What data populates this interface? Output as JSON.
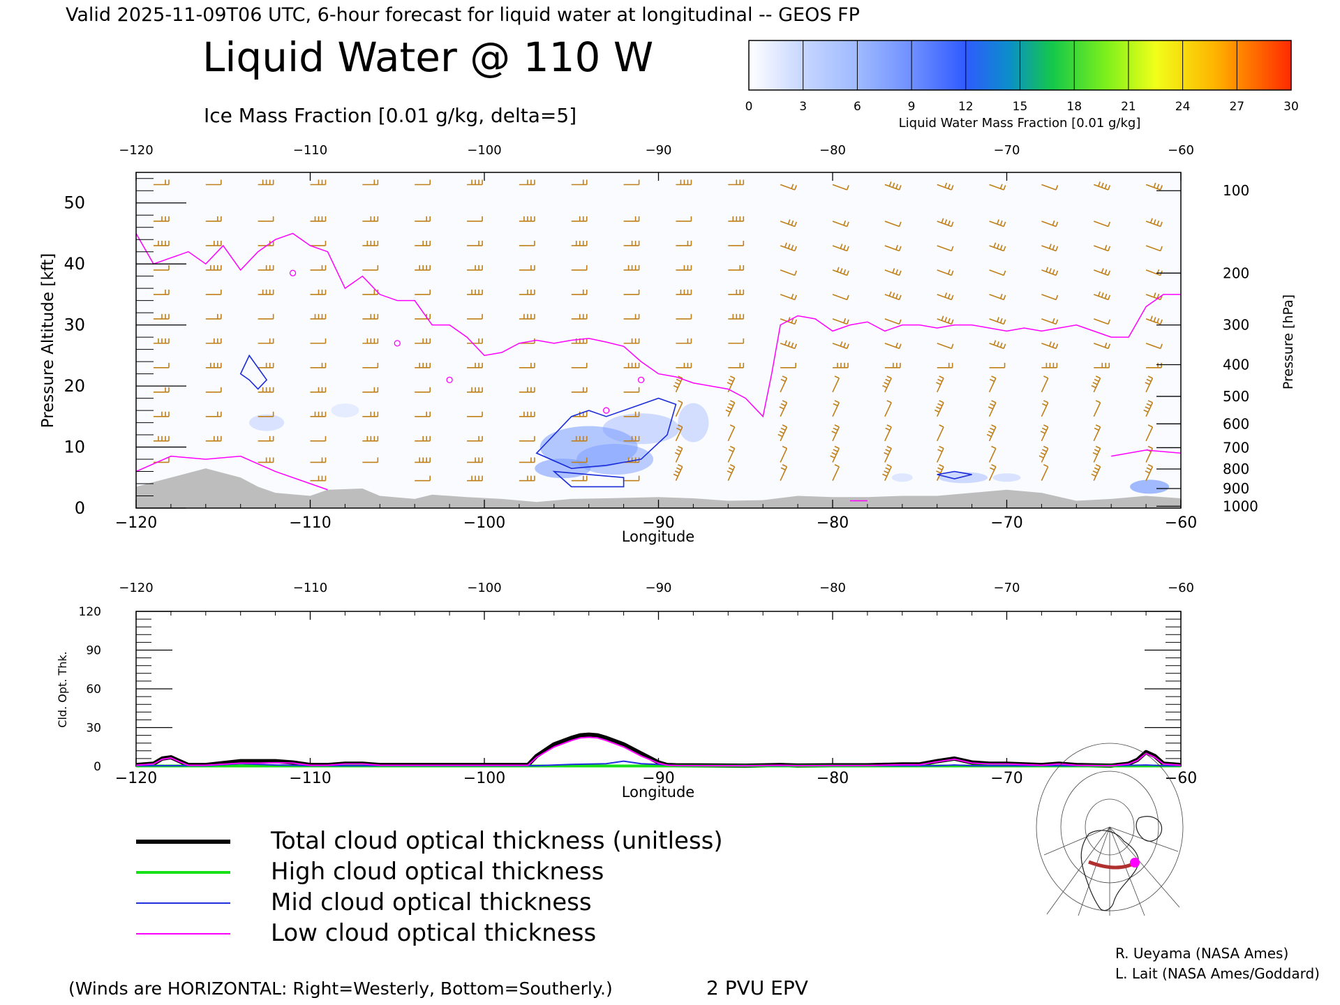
{
  "header": {
    "valid_line": "Valid 2025-11-09T06 UTC, 6-hour forecast for liquid water at longitudinal -- GEOS FP",
    "title": "Liquid Water @ 110 W",
    "ice_label": "Ice Mass Fraction [0.01 g/kg, delta=5]"
  },
  "colorbar": {
    "ticks": [
      "0",
      "3",
      "6",
      "9",
      "12",
      "15",
      "18",
      "21",
      "24",
      "27",
      "30"
    ],
    "label": "Liquid Water Mass Fraction [0.01 g/kg]",
    "colors": [
      "#ffffff",
      "#c6d6ff",
      "#9fbaff",
      "#7b9cff",
      "#3f68ff",
      "#0b8ec9",
      "#14c84a",
      "#7ef01b",
      "#f1ff1a",
      "#ffb300",
      "#ff2a00"
    ]
  },
  "colors": {
    "wind": "#c07f17",
    "epv": "#ff00ff",
    "ice": "#1b2cd8",
    "terrain": "#bdbdbd",
    "liquid_blue": "#7a9cff"
  },
  "top_panel": {
    "xlabel": "Longitude",
    "ylabel": "Pressure Altitude [kft]",
    "ylabel_right": "Pressure [hPa]"
  },
  "bottom_panel": {
    "xlabel": "Longitude",
    "ylabel": "Cld. Opt. Thk."
  },
  "legend": [
    {
      "name": "Total cloud optical thickness (unitless)",
      "color": "#000000",
      "width": 6
    },
    {
      "name": "High cloud optical thickness",
      "color": "#16e016",
      "width": 4
    },
    {
      "name": "Mid cloud optical thickness",
      "color": "#2030e0",
      "width": 2
    },
    {
      "name": "Low cloud optical thickness",
      "color": "#ff00ff",
      "width": 2
    }
  ],
  "footer": {
    "winds_note": "(Winds are HORIZONTAL: Right=Westerly, Bottom=Southerly.)",
    "epv_note": "2 PVU EPV",
    "credit1": "R. Ueyama (NASA Ames)",
    "credit2": "L. Lait (NASA Ames/Goddard)"
  },
  "chart_data": [
    {
      "type": "heatmap",
      "title": "Liquid Water @ 110 W",
      "xlabel": "Longitude",
      "ylabel": "Pressure Altitude [kft]",
      "ylabel_right": "Pressure [hPa]",
      "xlim": [
        -120,
        -60
      ],
      "ylim": [
        0,
        55
      ],
      "xticks": [
        -120,
        -110,
        -100,
        -90,
        -80,
        -70,
        -60
      ],
      "xtick_labels": [
        "−120",
        "−110",
        "−100",
        "−90",
        "−80",
        "−70",
        "−60"
      ],
      "yticks": [
        0,
        10,
        20,
        30,
        40,
        50
      ],
      "ytick_labels": [
        "0",
        "10",
        "20",
        "30",
        "40",
        "50"
      ],
      "pressure_ticks": [
        {
          "label": "100",
          "kft": 52.0
        },
        {
          "label": "200",
          "kft": 38.5
        },
        {
          "label": "300",
          "kft": 30.0
        },
        {
          "label": "400",
          "kft": 23.5
        },
        {
          "label": "500",
          "kft": 18.3
        },
        {
          "label": "600",
          "kft": 13.8
        },
        {
          "label": "700",
          "kft": 9.9
        },
        {
          "label": "800",
          "kft": 6.4
        },
        {
          "label": "900",
          "kft": 3.2
        },
        {
          "label": "1000",
          "kft": 0.3
        }
      ],
      "colorbar_range": [
        0,
        30
      ],
      "epv_2pvu_line": [
        [
          -120,
          45
        ],
        [
          -119,
          40
        ],
        [
          -118,
          41
        ],
        [
          -117,
          42
        ],
        [
          -116,
          40
        ],
        [
          -115,
          43
        ],
        [
          -114,
          39
        ],
        [
          -113,
          42
        ],
        [
          -112,
          44
        ],
        [
          -111,
          45
        ],
        [
          -110,
          43
        ],
        [
          -109,
          42
        ],
        [
          -108,
          36
        ],
        [
          -107,
          38
        ],
        [
          -106,
          35
        ],
        [
          -105,
          34
        ],
        [
          -104,
          34
        ],
        [
          -103,
          30
        ],
        [
          -102,
          30
        ],
        [
          -101,
          28
        ],
        [
          -100,
          25
        ],
        [
          -99,
          25.5
        ],
        [
          -98,
          27
        ],
        [
          -97,
          27.5
        ],
        [
          -96,
          27
        ],
        [
          -95,
          27.5
        ],
        [
          -94,
          27.8
        ],
        [
          -93,
          27.2
        ],
        [
          -92,
          26.5
        ],
        [
          -91,
          24
        ],
        [
          -90,
          22
        ],
        [
          -89,
          21.5
        ],
        [
          -88,
          20.5
        ],
        [
          -87,
          20
        ],
        [
          -86,
          19.5
        ],
        [
          -85,
          18
        ],
        [
          -84,
          15
        ],
        [
          -83.5,
          22
        ],
        [
          -83,
          30
        ],
        [
          -82,
          31.5
        ],
        [
          -81,
          31
        ],
        [
          -80,
          29
        ],
        [
          -79,
          30
        ],
        [
          -78,
          30.5
        ],
        [
          -77,
          29
        ],
        [
          -76,
          30
        ],
        [
          -75,
          30
        ],
        [
          -74,
          29.5
        ],
        [
          -73,
          30
        ],
        [
          -72,
          30
        ],
        [
          -71,
          29.5
        ],
        [
          -70,
          29
        ],
        [
          -69,
          29.5
        ],
        [
          -68,
          29
        ],
        [
          -67,
          29.5
        ],
        [
          -66,
          30
        ],
        [
          -65,
          29
        ],
        [
          -64,
          28
        ],
        [
          -63,
          28
        ],
        [
          -62,
          33
        ],
        [
          -61,
          35
        ],
        [
          -60,
          35
        ]
      ],
      "ice_contour_levels": [
        1
      ],
      "terrain_kft": [
        [
          -120,
          3.5
        ],
        [
          -118,
          5.0
        ],
        [
          -116,
          6.5
        ],
        [
          -114,
          5.0
        ],
        [
          -113,
          3.5
        ],
        [
          -112,
          2.5
        ],
        [
          -110,
          2.0
        ],
        [
          -109,
          3.0
        ],
        [
          -107,
          3.2
        ],
        [
          -106,
          2.0
        ],
        [
          -104,
          1.5
        ],
        [
          -103,
          2.2
        ],
        [
          -101,
          1.8
        ],
        [
          -99,
          1.5
        ],
        [
          -97,
          1.0
        ],
        [
          -95,
          1.5
        ],
        [
          -93,
          1.6
        ],
        [
          -90,
          1.8
        ],
        [
          -88,
          1.6
        ],
        [
          -86,
          1.2
        ],
        [
          -84,
          1.3
        ],
        [
          -82,
          2.0
        ],
        [
          -80,
          1.8
        ],
        [
          -78,
          1.8
        ],
        [
          -76,
          2.0
        ],
        [
          -74,
          2.0
        ],
        [
          -72,
          2.5
        ],
        [
          -70,
          3.0
        ],
        [
          -68,
          2.5
        ],
        [
          -66,
          1.2
        ],
        [
          -64,
          1.5
        ],
        [
          -62,
          2.0
        ],
        [
          -60,
          1.6
        ]
      ]
    },
    {
      "type": "line",
      "xlabel": "Longitude",
      "ylabel": "Cld. Opt. Thk.",
      "xlim": [
        -120,
        -60
      ],
      "ylim": [
        0,
        120
      ],
      "xticks": [
        -120,
        -110,
        -100,
        -90,
        -80,
        -70,
        -60
      ],
      "xtick_labels": [
        "−120",
        "−110",
        "−100",
        "−90",
        "−80",
        "−70",
        "−60"
      ],
      "yticks": [
        0,
        30,
        60,
        90,
        120
      ],
      "ytick_labels": [
        "0",
        "30",
        "60",
        "90",
        "120"
      ],
      "series": [
        {
          "name": "Total cloud optical thickness (unitless)",
          "x": [
            -120,
            -119,
            -118.5,
            -118,
            -117.5,
            -117,
            -116,
            -114,
            -113,
            -112,
            -111,
            -110,
            -109,
            -108,
            -107,
            -106,
            -100,
            -98,
            -97.5,
            -97,
            -96,
            -95,
            -94.5,
            -94,
            -93.5,
            -93,
            -92,
            -91,
            -90,
            -89.5,
            -89,
            -85,
            -83,
            -82,
            -80,
            -78,
            -76,
            -75,
            -74,
            -73.5,
            -73,
            -72,
            -71,
            -70,
            -68,
            -67,
            -66,
            -64,
            -63,
            -62.5,
            -62,
            -61.5,
            -61,
            -60
          ],
          "y": [
            1,
            2,
            6,
            7,
            4,
            1,
            1,
            4,
            4,
            4,
            3,
            1,
            1,
            2,
            2,
            1,
            1,
            1,
            1,
            8,
            17,
            22,
            24,
            24.5,
            24,
            22,
            17,
            10,
            3,
            1,
            0.8,
            0.5,
            1,
            0.6,
            0.8,
            0.8,
            1.5,
            1.5,
            4,
            5,
            6,
            3,
            2,
            2,
            1,
            2,
            1,
            0.5,
            2,
            5,
            11,
            8,
            2,
            1
          ]
        },
        {
          "name": "High cloud optical thickness",
          "x": [
            -120,
            -60
          ],
          "y": [
            0.3,
            0.3
          ]
        },
        {
          "name": "Mid cloud optical thickness",
          "x": [
            -120,
            -116,
            -114,
            -112,
            -110,
            -97,
            -95,
            -93,
            -92,
            -91,
            -90,
            -89,
            -80,
            -74,
            -73,
            -72,
            -64,
            -62,
            -61,
            -60
          ],
          "y": [
            0.5,
            0.5,
            2,
            1,
            0.5,
            0.5,
            1.5,
            2,
            4,
            2,
            1.5,
            0.5,
            0.5,
            0.5,
            1,
            0.5,
            0.5,
            1,
            0.5,
            0.5
          ]
        },
        {
          "name": "Low cloud optical thickness",
          "x": [
            -120,
            -119,
            -118.5,
            -118,
            -117.5,
            -117,
            -116,
            -114,
            -113,
            -112,
            -111,
            -110,
            -109,
            -108,
            -107,
            -106,
            -100,
            -98,
            -97.5,
            -97,
            -96,
            -95,
            -94.5,
            -94,
            -93.5,
            -93,
            -92,
            -91,
            -90,
            -89.5,
            -89,
            -85,
            -83,
            -82,
            -80,
            -78,
            -76,
            -75,
            -74,
            -73.5,
            -73,
            -72,
            -71,
            -70,
            -68,
            -67,
            -66,
            -64,
            -63,
            -62.5,
            -62,
            -61.5,
            -61,
            -60
          ],
          "y": [
            0.8,
            1.8,
            5.5,
            6.5,
            3.5,
            0.8,
            0.8,
            2.5,
            2.5,
            2.8,
            2.5,
            0.8,
            0.8,
            1.8,
            1.8,
            0.8,
            0.8,
            0.8,
            0.8,
            7,
            15,
            20,
            22,
            22.5,
            22,
            20,
            15,
            8,
            2.5,
            0.8,
            0.6,
            0.4,
            0.8,
            0.5,
            0.6,
            0.6,
            1.2,
            1.2,
            3.5,
            4.5,
            5.5,
            2.5,
            1.8,
            1.8,
            0.8,
            1.8,
            0.8,
            0.4,
            1.8,
            4.5,
            10,
            7,
            1.8,
            0.8
          ]
        }
      ]
    }
  ]
}
